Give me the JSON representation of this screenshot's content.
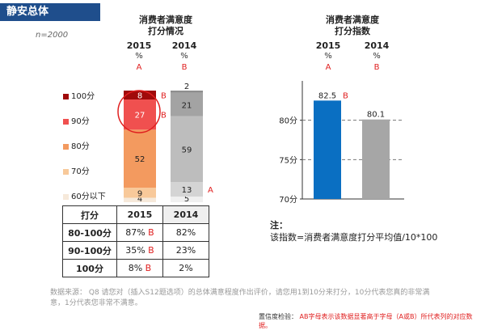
{
  "badge": "静安总体",
  "sample_size": "n=2000",
  "left_chart": {
    "title_line1": "消费者满意度",
    "title_line2": "打分情况",
    "years": [
      "2015",
      "2014"
    ],
    "pct_label": "%",
    "sig_labels": [
      "A",
      "B"
    ]
  },
  "right_chart": {
    "title_line1": "消费者满意度",
    "title_line2": "打分指数",
    "years": [
      "2015",
      "2014"
    ],
    "pct_label": "%",
    "sig_labels": [
      "A",
      "B"
    ]
  },
  "legend": [
    {
      "label": "100分",
      "color": "#a00a0a"
    },
    {
      "label": "90分",
      "color": "#f0504f"
    },
    {
      "label": "80分",
      "color": "#f39a5f"
    },
    {
      "label": "70分",
      "color": "#f8c99a"
    },
    {
      "label": "60分以下",
      "color": "#f6e9da"
    }
  ],
  "table": {
    "headers": [
      "打分",
      "2015",
      "2014"
    ],
    "rows": [
      {
        "label": "80-100分",
        "v2015": "87%",
        "m2015": "B",
        "v2014": "82%"
      },
      {
        "label": "90-100分",
        "v2015": "35%",
        "m2015": "B",
        "v2014": "23%"
      },
      {
        "label": "100分",
        "v2015": "8%",
        "m2015": "B",
        "v2014": "2%"
      }
    ]
  },
  "note": {
    "title": "注：",
    "text": "该指数=消费者满意度打分平均值/10*100"
  },
  "source": {
    "label": "数据来源：",
    "text": "Q8 请您对（插入S12题选项）的总体满意程度作出评价，请您用1到10分来打分，10分代表您真的非常满意，1分代表您非常不满意。"
  },
  "footnote": {
    "label": "置信度检验：",
    "text": "AB字母表示该数据显著高于字母（A或B）所代表列的对应数据。"
  },
  "chart_data": [
    {
      "type": "bar",
      "stacked": true,
      "title": "消费者满意度打分情况",
      "categories": [
        "2015",
        "2014"
      ],
      "series": [
        {
          "name": "60分以下",
          "values": [
            4,
            5
          ],
          "color": "#f6e9da",
          "marks": [
            "",
            ""
          ]
        },
        {
          "name": "70分",
          "values": [
            9,
            13
          ],
          "color": "#f8c99a",
          "marks": [
            "",
            "A"
          ]
        },
        {
          "name": "80分",
          "values": [
            52,
            59
          ],
          "color": "#f39a5f",
          "marks": [
            "",
            ""
          ]
        },
        {
          "name": "90分",
          "values": [
            27,
            21
          ],
          "color": "#f0504f",
          "marks": [
            "B",
            ""
          ]
        },
        {
          "name": "100分",
          "values": [
            8,
            2
          ],
          "color": "#a00a0a",
          "marks": [
            "B",
            ""
          ]
        }
      ],
      "series_2014_colors": [
        "#f0f0f0",
        "#d4d4d4",
        "#bdbdbd",
        "#a3a3a3",
        "#8e8e8e"
      ],
      "ylim": [
        0,
        100
      ],
      "unit": "%"
    },
    {
      "type": "bar",
      "title": "消费者满意度打分指数",
      "categories": [
        "2015",
        "2014"
      ],
      "values": [
        82.5,
        80.1
      ],
      "marks": [
        "B",
        ""
      ],
      "colors": [
        "#0a6fc2",
        "#a6a6a6"
      ],
      "ylim": [
        70,
        85
      ],
      "yticks": [
        "70分",
        "75分",
        "80分"
      ],
      "ytick_values": [
        70,
        75,
        80
      ]
    }
  ]
}
